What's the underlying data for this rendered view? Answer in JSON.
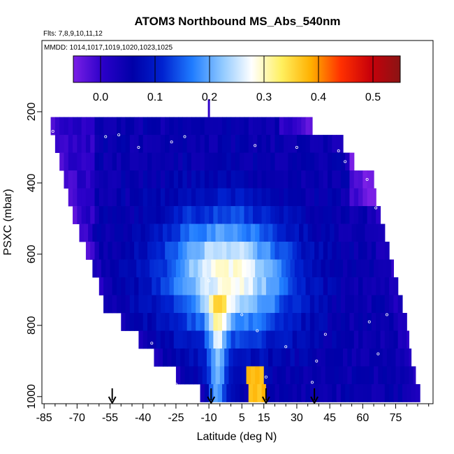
{
  "chart_data": {
    "type": "heatmap",
    "title": "ATOM3 Northbound MS_Abs_540nm",
    "subtitle_flights": "Flts: 7,8,9,10,11,12",
    "subtitle_dates": "MMDD: 1014,1017,1019,1020,1023,1025",
    "xlabel": "Latitude (deg N)",
    "ylabel": "PSXC (mbar)",
    "xlim": [
      -86,
      92
    ],
    "ylim": [
      1020,
      0
    ],
    "x_ticks": [
      -85,
      -70,
      -55,
      -40,
      -25,
      -10,
      5,
      15,
      30,
      45,
      60,
      75
    ],
    "x_tick_labels": [
      "-85",
      "-70",
      "-55",
      "-40",
      "-25",
      "-10",
      "5",
      "15",
      "30",
      "45",
      "60",
      "75"
    ],
    "y_ticks": [
      200,
      400,
      600,
      800,
      1000
    ],
    "y_tick_labels": [
      "200",
      "400",
      "600",
      "800",
      "1000"
    ],
    "colorbar": {
      "range": [
        -0.05,
        0.55
      ],
      "tick_values": [
        0.0,
        0.1,
        0.2,
        0.3,
        0.4,
        0.5
      ],
      "tick_labels": [
        "0.0",
        "0.1",
        "0.2",
        "0.3",
        "0.4",
        "0.5"
      ],
      "colors": [
        "#7a1fe6",
        "#2a00c8",
        "#0000a8",
        "#0022d0",
        "#1f7cff",
        "#8ec8ff",
        "#ffffff",
        "#fff060",
        "#ffb000",
        "#ff3000",
        "#c8000a",
        "#8a1414"
      ]
    },
    "bands": [
      {
        "p": 240,
        "lat_min": -82,
        "lat_max": 37
      },
      {
        "p": 290,
        "lat_min": -80,
        "lat_max": 51
      },
      {
        "p": 340,
        "lat_min": -78,
        "lat_max": 56
      },
      {
        "p": 390,
        "lat_min": -76,
        "lat_max": 65
      },
      {
        "p": 440,
        "lat_min": -74,
        "lat_max": 66
      },
      {
        "p": 490,
        "lat_min": -72,
        "lat_max": 68
      },
      {
        "p": 540,
        "lat_min": -69,
        "lat_max": 70
      },
      {
        "p": 590,
        "lat_min": -66,
        "lat_max": 72
      },
      {
        "p": 640,
        "lat_min": -63,
        "lat_max": 74
      },
      {
        "p": 690,
        "lat_min": -60,
        "lat_max": 76
      },
      {
        "p": 740,
        "lat_min": -58,
        "lat_max": 78
      },
      {
        "p": 790,
        "lat_min": -50,
        "lat_max": 80
      },
      {
        "p": 840,
        "lat_min": -42,
        "lat_max": 81
      },
      {
        "p": 890,
        "lat_min": -35,
        "lat_max": 82
      },
      {
        "p": 940,
        "lat_min": -25,
        "lat_max": 84
      },
      {
        "p": 990,
        "lat_min": -14,
        "lat_max": 86
      }
    ],
    "column_top": {
      "lat": -10,
      "p_min": 165,
      "p_max": 215
    },
    "flight_arrows_lat": [
      -54,
      -9,
      16,
      38
    ],
    "sample_points": [
      {
        "lat": -81,
        "p": 255
      },
      {
        "lat": -57,
        "p": 270
      },
      {
        "lat": -51,
        "p": 265
      },
      {
        "lat": -42,
        "p": 300
      },
      {
        "lat": -27,
        "p": 285
      },
      {
        "lat": -21,
        "p": 270
      },
      {
        "lat": 11,
        "p": 295
      },
      {
        "lat": 30,
        "p": 300
      },
      {
        "lat": 49,
        "p": 310
      },
      {
        "lat": 52,
        "p": 340
      },
      {
        "lat": 62,
        "p": 390
      },
      {
        "lat": 68,
        "p": 410
      },
      {
        "lat": 66,
        "p": 470
      },
      {
        "lat": 71,
        "p": 530
      },
      {
        "lat": -10,
        "p": 675
      },
      {
        "lat": 5,
        "p": 770
      },
      {
        "lat": 12,
        "p": 815
      },
      {
        "lat": 63,
        "p": 790
      },
      {
        "lat": 71,
        "p": 770
      },
      {
        "lat": 43,
        "p": 825
      },
      {
        "lat": 25,
        "p": 860
      },
      {
        "lat": -36,
        "p": 850
      },
      {
        "lat": 39,
        "p": 900
      },
      {
        "lat": 67,
        "p": 880
      },
      {
        "lat": 16,
        "p": 945
      },
      {
        "lat": 37,
        "p": 960
      },
      {
        "lat": -25,
        "p": 965
      },
      {
        "lat": -20,
        "p": 1000
      }
    ]
  }
}
